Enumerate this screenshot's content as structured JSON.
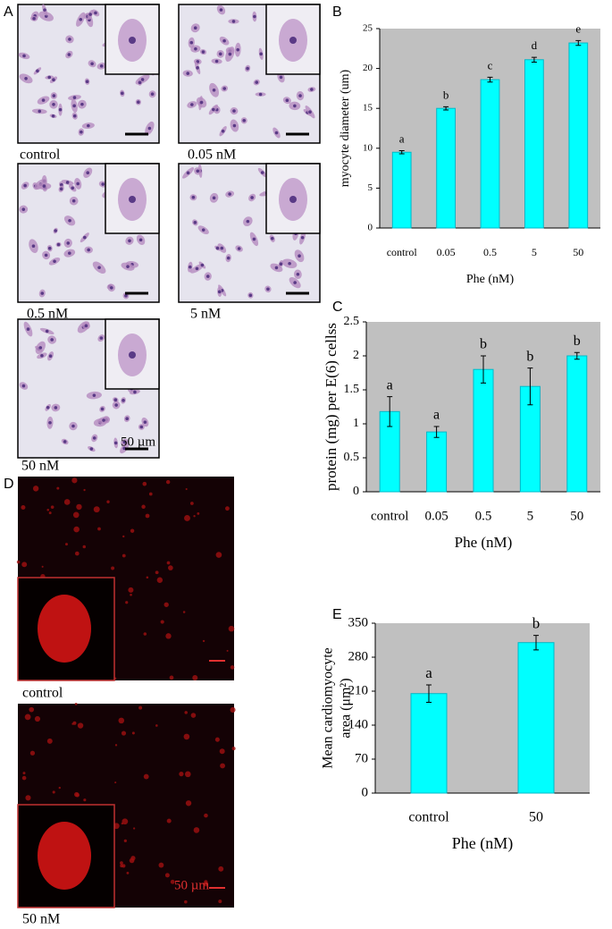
{
  "figure": {
    "panel_labels": [
      "A",
      "B",
      "C",
      "D",
      "E"
    ],
    "panel_a": {
      "captions": [
        "control",
        "0.05 nM",
        "0.5 nM",
        "5 nM",
        "50 nM"
      ],
      "scale_bar": "50 µm"
    },
    "panel_d": {
      "captions": [
        "control",
        "50 nM"
      ],
      "scale_bar": "50 µm"
    }
  },
  "chart_data": [
    {
      "type": "bar",
      "ylabel": "myocyte diameter (um)",
      "xlabel": "Phe (nM)",
      "categories": [
        "control",
        "0.05",
        "0.5",
        "5",
        "50"
      ],
      "values": [
        9.5,
        15,
        18.6,
        21.1,
        23.2
      ],
      "errors": [
        0.2,
        0.2,
        0.3,
        0.3,
        0.3
      ],
      "annotations": [
        "a",
        "b",
        "c",
        "d",
        "e"
      ],
      "color": "#00ffff",
      "ylim": [
        0,
        25
      ],
      "yticks": [
        0,
        5,
        10,
        15,
        20,
        25
      ]
    },
    {
      "type": "bar",
      "ylabel": "protein (mg) per E(6) cellss",
      "xlabel": "Phe (nM)",
      "categories": [
        "control",
        "0.05",
        "0.5",
        "5",
        "50"
      ],
      "values": [
        1.18,
        0.88,
        1.8,
        1.55,
        2.0
      ],
      "errors": [
        0.22,
        0.08,
        0.2,
        0.27,
        0.05
      ],
      "annotations": [
        "a",
        "a",
        "b",
        "b",
        "b"
      ],
      "color": "#00ffff",
      "ylim": [
        0,
        2.5
      ],
      "yticks": [
        0,
        0.5,
        1,
        1.5,
        2,
        2.5
      ]
    },
    {
      "type": "bar",
      "ylabel": [
        "Mean cardiomyocyte",
        "area (μm²)"
      ],
      "xlabel": "Phe (nM)",
      "categories": [
        "control",
        "50"
      ],
      "values": [
        205,
        310
      ],
      "errors": [
        18,
        15
      ],
      "annotations": [
        "a",
        "b"
      ],
      "color": "#00ffff",
      "ylim": [
        0,
        350
      ],
      "yticks": [
        0,
        70,
        140,
        210,
        280,
        350
      ]
    }
  ]
}
